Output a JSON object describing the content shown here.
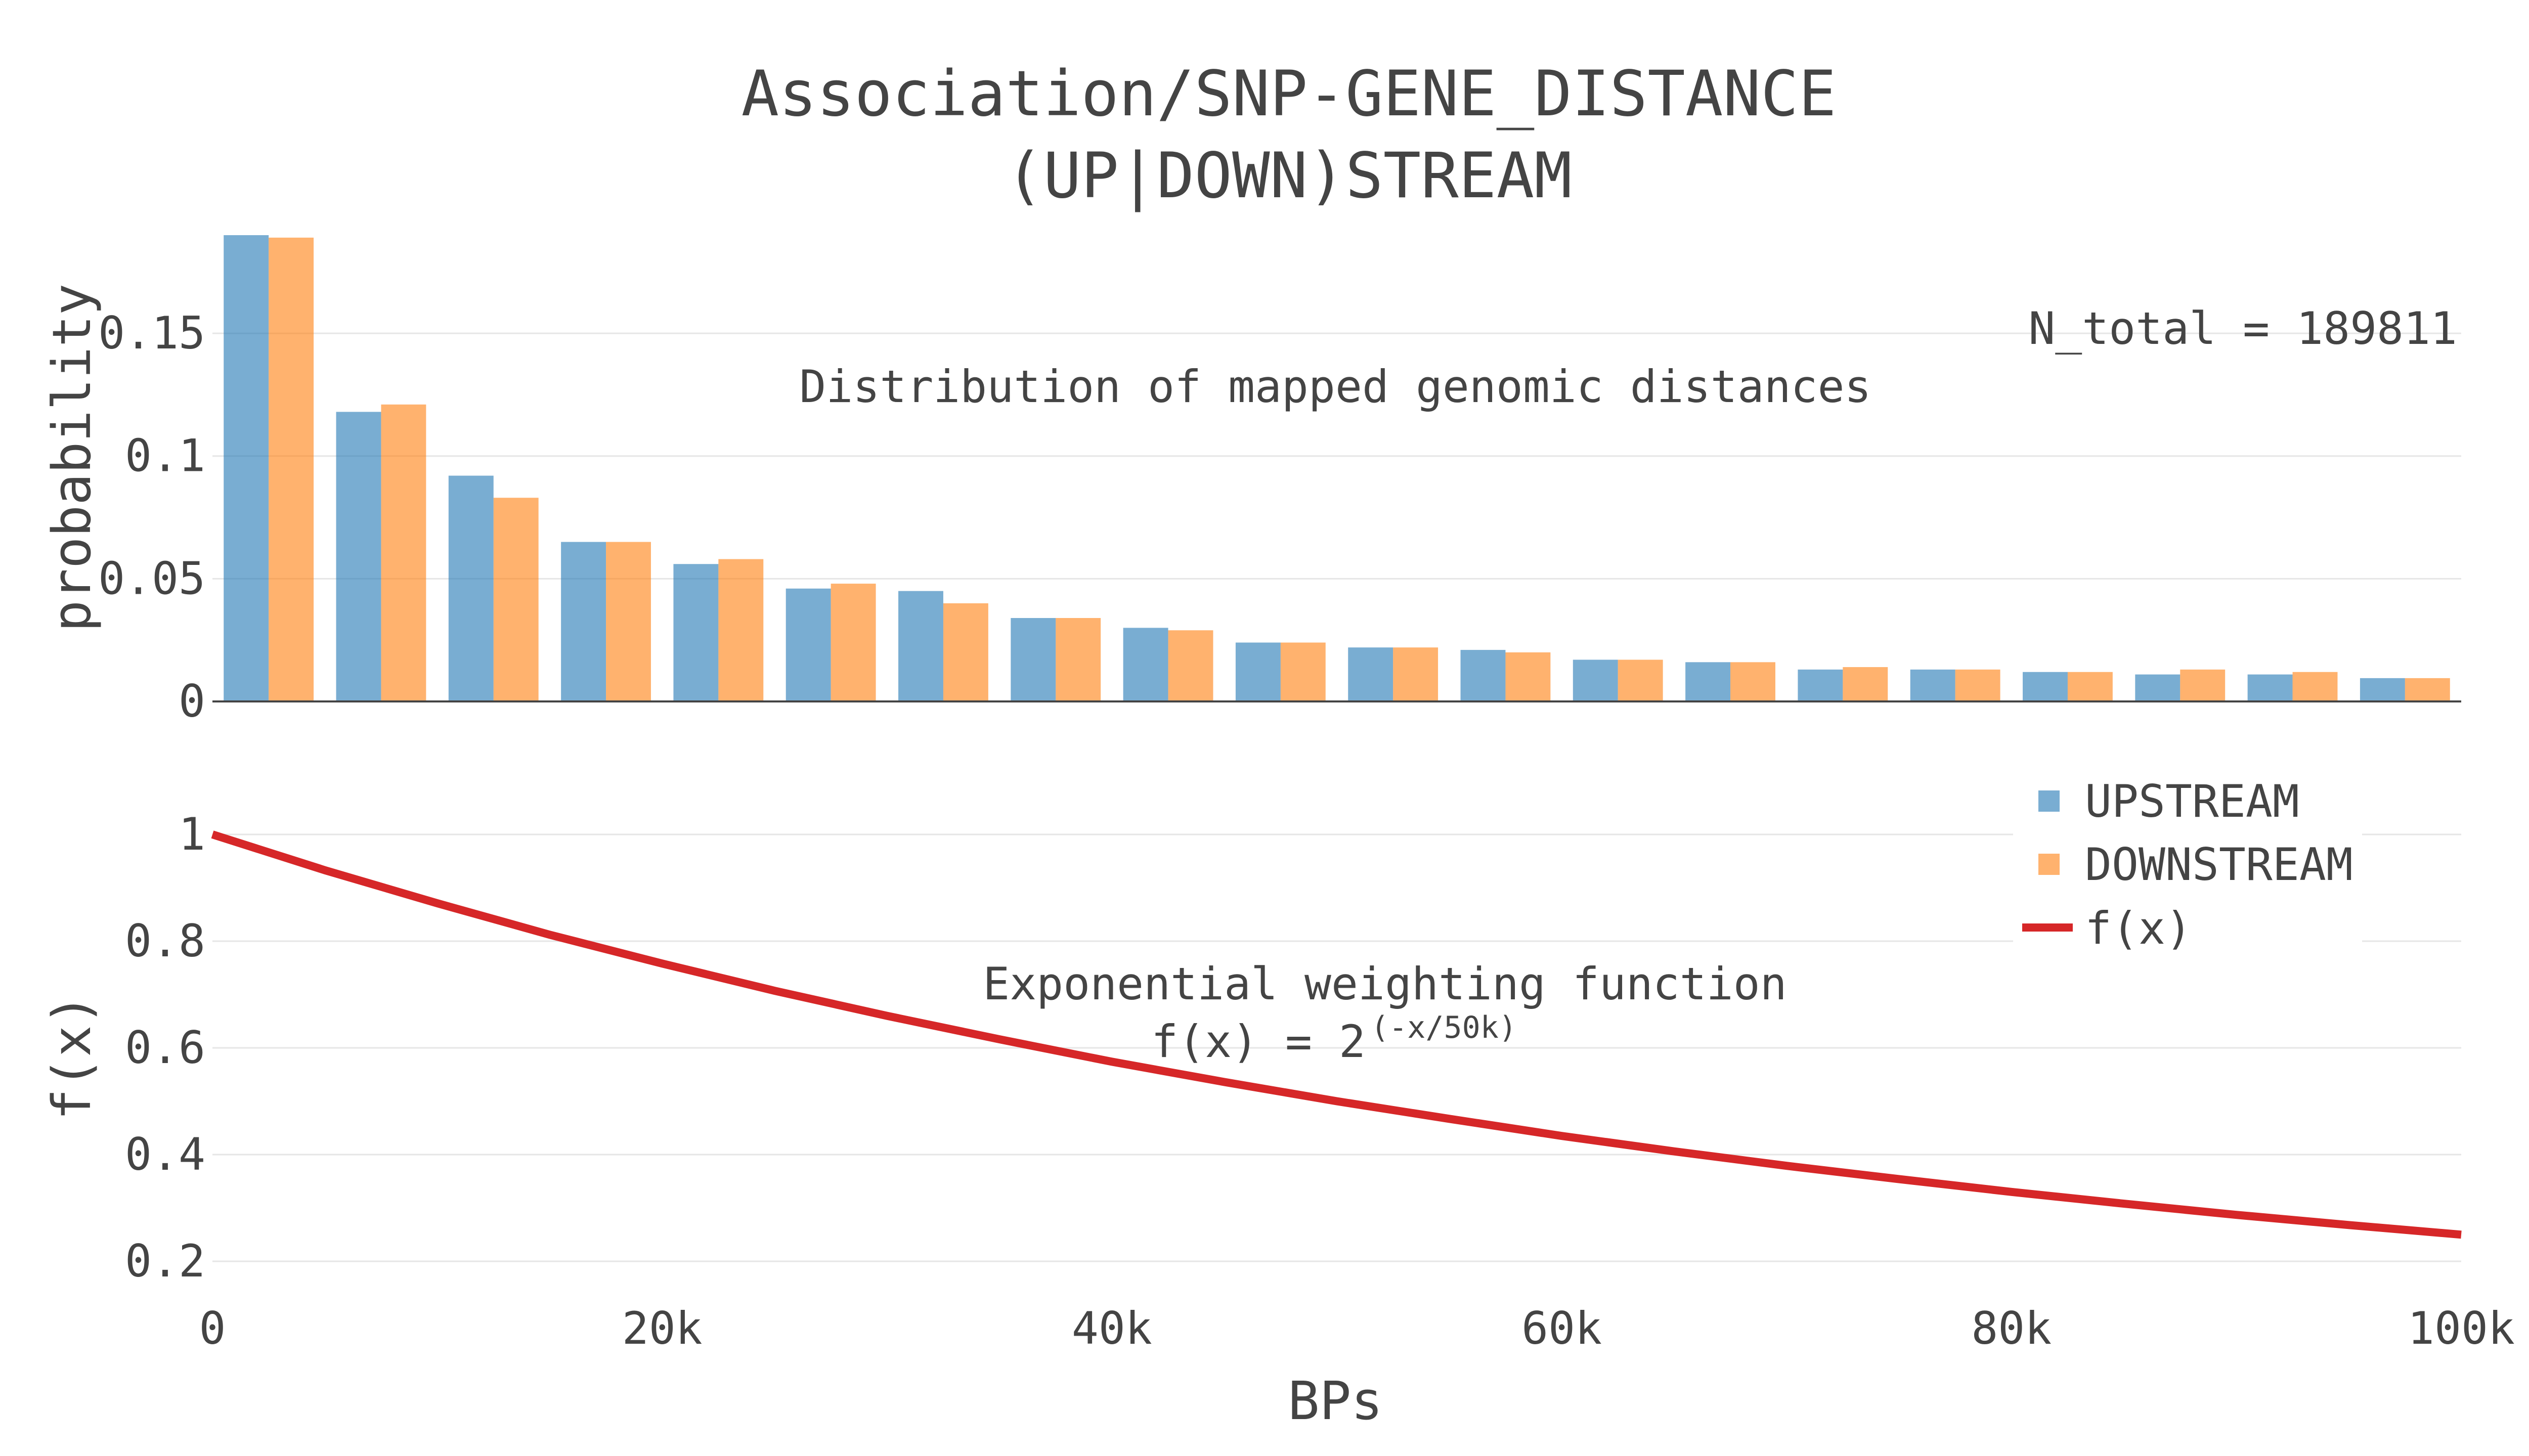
{
  "chart_data": [
    {
      "type": "bar",
      "title": "Association/SNP-GENE_DISTANCE",
      "subtitle": "(UP|DOWN)STREAM",
      "xlabel": "BPs",
      "ylabel": "probability",
      "xlim": [
        0,
        100000
      ],
      "ylim": [
        0,
        0.19
      ],
      "yticks": [
        0,
        0.05,
        0.1,
        0.15
      ],
      "ytick_labels": [
        "0",
        "0.05",
        "0.1",
        "0.15"
      ],
      "bin_width": 5000,
      "categories": [
        0,
        5000,
        10000,
        15000,
        20000,
        25000,
        30000,
        35000,
        40000,
        45000,
        50000,
        55000,
        60000,
        65000,
        70000,
        75000,
        80000,
        85000,
        90000,
        95000
      ],
      "series": [
        {
          "name": "UPSTREAM",
          "color": "#1f77b4",
          "opacity": 0.6,
          "values": [
            0.19,
            0.118,
            0.092,
            0.065,
            0.056,
            0.046,
            0.045,
            0.034,
            0.03,
            0.024,
            0.022,
            0.021,
            0.017,
            0.016,
            0.013,
            0.013,
            0.012,
            0.011,
            0.011,
            0.0095
          ]
        },
        {
          "name": "DOWNSTREAM",
          "color": "#ff7f0e",
          "opacity": 0.6,
          "values": [
            0.189,
            0.121,
            0.083,
            0.065,
            0.058,
            0.048,
            0.04,
            0.034,
            0.029,
            0.024,
            0.022,
            0.02,
            0.017,
            0.016,
            0.014,
            0.013,
            0.012,
            0.013,
            0.012,
            0.0095
          ]
        }
      ],
      "annotations": {
        "n_total": "N_total = 189811",
        "description": "Distribution of mapped genomic distances"
      }
    },
    {
      "type": "line",
      "xlabel": "BPs",
      "ylabel": "f(x)",
      "xlim": [
        0,
        100000
      ],
      "ylim": [
        0.17,
        1.01
      ],
      "yticks": [
        0.2,
        0.4,
        0.6,
        0.8,
        1
      ],
      "ytick_labels": [
        "0.2",
        "0.4",
        "0.6",
        "0.8",
        "1"
      ],
      "xticks": [
        0,
        20000,
        40000,
        60000,
        80000,
        100000
      ],
      "xtick_labels": [
        "0",
        "20k",
        "40k",
        "60k",
        "80k",
        "100k"
      ],
      "series": [
        {
          "name": "f(x)",
          "color": "#d62728",
          "formula_half_life": 50000,
          "x": [
            0,
            5000,
            10000,
            15000,
            20000,
            25000,
            30000,
            35000,
            40000,
            45000,
            50000,
            55000,
            60000,
            65000,
            70000,
            75000,
            80000,
            85000,
            90000,
            95000,
            100000
          ],
          "values": [
            1.0,
            0.933,
            0.871,
            0.812,
            0.758,
            0.707,
            0.66,
            0.616,
            0.574,
            0.536,
            0.5,
            0.467,
            0.435,
            0.406,
            0.379,
            0.354,
            0.33,
            0.308,
            0.287,
            0.268,
            0.25
          ]
        }
      ],
      "annotations": {
        "line1": "Exponential weighting function",
        "formula_base": "f(x) = 2",
        "formula_exponent": "(-x/50k)"
      }
    }
  ],
  "legend": {
    "items": [
      {
        "label": "UPSTREAM",
        "kind": "square",
        "color": "#1f77b4"
      },
      {
        "label": "DOWNSTREAM",
        "kind": "square",
        "color": "#ff7f0e"
      },
      {
        "label": "f(x)",
        "kind": "line",
        "color": "#d62728"
      }
    ]
  }
}
